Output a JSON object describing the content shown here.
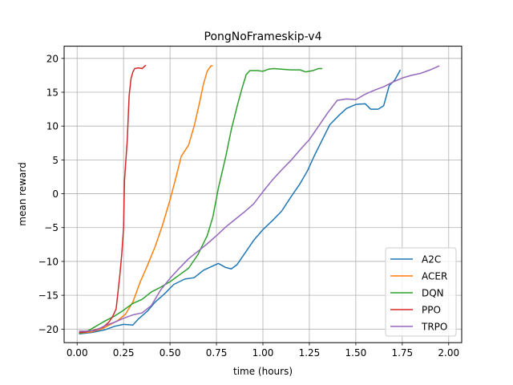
{
  "chart_data": {
    "type": "line",
    "title": "PongNoFrameskip-v4",
    "xlabel": "time (hours)",
    "ylabel": "mean reward",
    "xlim": [
      -0.07,
      2.07
    ],
    "ylim": [
      -22.0,
      21.8
    ],
    "xticks": [
      0.0,
      0.25,
      0.5,
      0.75,
      1.0,
      1.25,
      1.5,
      1.75,
      2.0
    ],
    "xtick_labels": [
      "0.00",
      "0.25",
      "0.50",
      "0.75",
      "1.00",
      "1.25",
      "1.50",
      "1.75",
      "2.00"
    ],
    "yticks": [
      -20,
      -15,
      -10,
      -5,
      0,
      5,
      10,
      15,
      20
    ],
    "ytick_labels": [
      "−20",
      "−15",
      "−10",
      "−5",
      "0",
      "5",
      "10",
      "15",
      "20"
    ],
    "grid": true,
    "legend_position": "lower-right",
    "series": [
      {
        "name": "A2C",
        "color": "#1f77b4",
        "points": [
          [
            0.01,
            -20.7
          ],
          [
            0.08,
            -20.5
          ],
          [
            0.15,
            -20.1
          ],
          [
            0.2,
            -19.6
          ],
          [
            0.25,
            -19.3
          ],
          [
            0.3,
            -19.4
          ],
          [
            0.33,
            -18.5
          ],
          [
            0.38,
            -17.3
          ],
          [
            0.42,
            -16.0
          ],
          [
            0.47,
            -14.8
          ],
          [
            0.52,
            -13.4
          ],
          [
            0.58,
            -12.6
          ],
          [
            0.63,
            -12.4
          ],
          [
            0.68,
            -11.3
          ],
          [
            0.72,
            -10.8
          ],
          [
            0.76,
            -10.3
          ],
          [
            0.8,
            -10.9
          ],
          [
            0.83,
            -11.1
          ],
          [
            0.86,
            -10.5
          ],
          [
            0.9,
            -8.9
          ],
          [
            0.95,
            -6.9
          ],
          [
            1.0,
            -5.3
          ],
          [
            1.05,
            -4.0
          ],
          [
            1.1,
            -2.6
          ],
          [
            1.15,
            -0.5
          ],
          [
            1.2,
            1.5
          ],
          [
            1.24,
            3.4
          ],
          [
            1.28,
            5.8
          ],
          [
            1.32,
            8.0
          ],
          [
            1.36,
            10.2
          ],
          [
            1.41,
            11.6
          ],
          [
            1.45,
            12.6
          ],
          [
            1.5,
            13.2
          ],
          [
            1.55,
            13.3
          ],
          [
            1.58,
            12.5
          ],
          [
            1.62,
            12.5
          ],
          [
            1.65,
            13.0
          ],
          [
            1.68,
            16.0
          ],
          [
            1.71,
            16.8
          ],
          [
            1.74,
            18.3
          ]
        ]
      },
      {
        "name": "ACER",
        "color": "#ff7f0e",
        "points": [
          [
            0.01,
            -20.6
          ],
          [
            0.08,
            -20.4
          ],
          [
            0.13,
            -20.0
          ],
          [
            0.18,
            -19.3
          ],
          [
            0.22,
            -18.7
          ],
          [
            0.26,
            -17.8
          ],
          [
            0.3,
            -16.0
          ],
          [
            0.34,
            -13.0
          ],
          [
            0.38,
            -10.5
          ],
          [
            0.42,
            -7.8
          ],
          [
            0.46,
            -4.6
          ],
          [
            0.5,
            -0.9
          ],
          [
            0.53,
            2.2
          ],
          [
            0.56,
            5.5
          ],
          [
            0.6,
            7.2
          ],
          [
            0.63,
            10.0
          ],
          [
            0.66,
            13.6
          ],
          [
            0.68,
            16.2
          ],
          [
            0.7,
            18.1
          ],
          [
            0.72,
            18.9
          ],
          [
            0.73,
            18.9
          ]
        ]
      },
      {
        "name": "DQN",
        "color": "#2ca02c",
        "points": [
          [
            0.01,
            -20.6
          ],
          [
            0.05,
            -20.4
          ],
          [
            0.1,
            -19.6
          ],
          [
            0.15,
            -18.8
          ],
          [
            0.2,
            -18.1
          ],
          [
            0.25,
            -17.2
          ],
          [
            0.3,
            -16.2
          ],
          [
            0.35,
            -15.6
          ],
          [
            0.4,
            -14.5
          ],
          [
            0.45,
            -13.8
          ],
          [
            0.5,
            -13.0
          ],
          [
            0.55,
            -12.0
          ],
          [
            0.6,
            -11.0
          ],
          [
            0.65,
            -9.0
          ],
          [
            0.7,
            -6.2
          ],
          [
            0.73,
            -3.5
          ],
          [
            0.76,
            0.8
          ],
          [
            0.8,
            5.5
          ],
          [
            0.83,
            9.5
          ],
          [
            0.86,
            12.8
          ],
          [
            0.89,
            15.8
          ],
          [
            0.91,
            17.6
          ],
          [
            0.93,
            18.2
          ],
          [
            0.97,
            18.2
          ],
          [
            1.0,
            18.1
          ],
          [
            1.03,
            18.4
          ],
          [
            1.06,
            18.5
          ],
          [
            1.1,
            18.4
          ],
          [
            1.15,
            18.3
          ],
          [
            1.2,
            18.3
          ],
          [
            1.23,
            18.0
          ],
          [
            1.27,
            18.2
          ],
          [
            1.3,
            18.5
          ],
          [
            1.32,
            18.5
          ]
        ]
      },
      {
        "name": "PPO",
        "color": "#d62728",
        "points": [
          [
            0.01,
            -20.5
          ],
          [
            0.05,
            -20.4
          ],
          [
            0.1,
            -20.1
          ],
          [
            0.14,
            -19.7
          ],
          [
            0.17,
            -19.0
          ],
          [
            0.19,
            -18.2
          ],
          [
            0.21,
            -17.0
          ],
          [
            0.22,
            -14.5
          ],
          [
            0.23,
            -12.0
          ],
          [
            0.24,
            -9.0
          ],
          [
            0.25,
            -5.0
          ],
          [
            0.255,
            2.0
          ],
          [
            0.27,
            8.0
          ],
          [
            0.28,
            14.5
          ],
          [
            0.29,
            17.0
          ],
          [
            0.3,
            18.0
          ],
          [
            0.31,
            18.5
          ],
          [
            0.33,
            18.6
          ],
          [
            0.35,
            18.5
          ],
          [
            0.37,
            19.0
          ]
        ]
      },
      {
        "name": "TRPO",
        "color": "#9467bd",
        "points": [
          [
            0.01,
            -20.3
          ],
          [
            0.05,
            -20.3
          ],
          [
            0.1,
            -20.2
          ],
          [
            0.15,
            -19.5
          ],
          [
            0.2,
            -19.0
          ],
          [
            0.25,
            -18.4
          ],
          [
            0.3,
            -17.9
          ],
          [
            0.35,
            -17.6
          ],
          [
            0.4,
            -16.5
          ],
          [
            0.45,
            -14.2
          ],
          [
            0.5,
            -12.5
          ],
          [
            0.55,
            -11.0
          ],
          [
            0.6,
            -9.6
          ],
          [
            0.65,
            -8.5
          ],
          [
            0.7,
            -7.4
          ],
          [
            0.75,
            -6.2
          ],
          [
            0.8,
            -4.9
          ],
          [
            0.85,
            -3.8
          ],
          [
            0.9,
            -2.7
          ],
          [
            0.95,
            -1.5
          ],
          [
            1.0,
            0.3
          ],
          [
            1.05,
            2.0
          ],
          [
            1.1,
            3.5
          ],
          [
            1.15,
            4.9
          ],
          [
            1.2,
            6.5
          ],
          [
            1.25,
            8.0
          ],
          [
            1.3,
            10.0
          ],
          [
            1.35,
            12.0
          ],
          [
            1.4,
            13.8
          ],
          [
            1.45,
            14.0
          ],
          [
            1.5,
            13.9
          ],
          [
            1.55,
            14.7
          ],
          [
            1.6,
            15.3
          ],
          [
            1.65,
            15.8
          ],
          [
            1.7,
            16.5
          ],
          [
            1.75,
            17.1
          ],
          [
            1.8,
            17.5
          ],
          [
            1.85,
            17.8
          ],
          [
            1.9,
            18.3
          ],
          [
            1.95,
            18.9
          ]
        ]
      }
    ]
  }
}
